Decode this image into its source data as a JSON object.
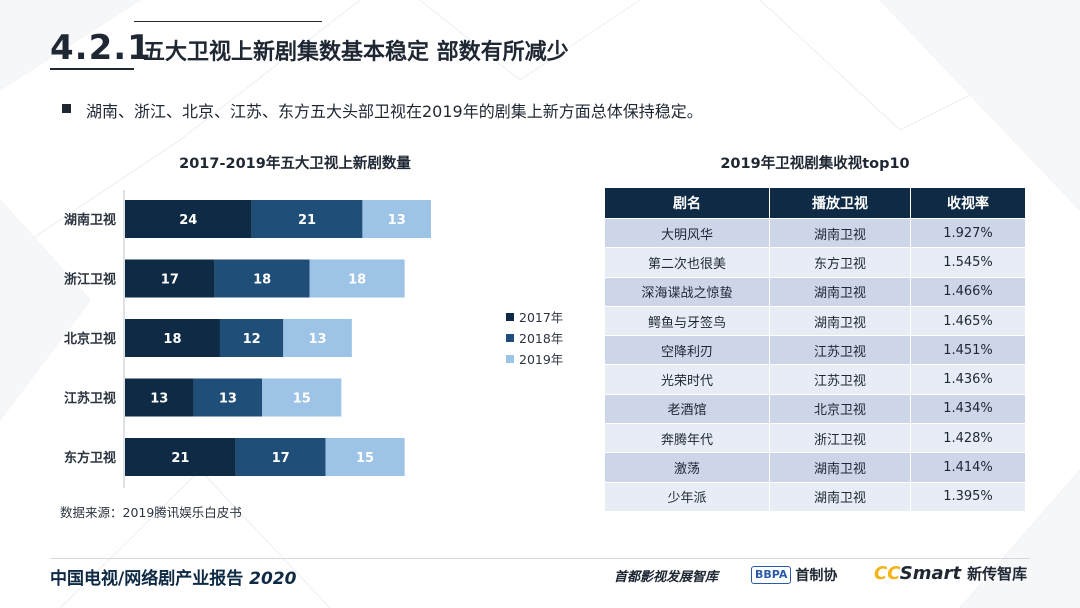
{
  "header": {
    "section_number": "4.2.1",
    "section_title": "五大卫视上新剧集数基本稳定  部数有所减少"
  },
  "bullet": "湖南、浙江、北京、江苏、东方五大头部卫视在2019年的剧集上新方面总体保持稳定。",
  "chart_data": {
    "type": "bar",
    "orientation": "horizontal",
    "stacked": true,
    "title": "2017-2019年五大卫视上新剧数量",
    "categories": [
      "湖南卫视",
      "浙江卫视",
      "北京卫视",
      "江苏卫视",
      "东方卫视"
    ],
    "series": [
      {
        "name": "2017年",
        "values": [
          24,
          17,
          18,
          13,
          21
        ],
        "color": "#0e2a44"
      },
      {
        "name": "2018年",
        "values": [
          21,
          18,
          12,
          13,
          17
        ],
        "color": "#1f4e79"
      },
      {
        "name": "2019年",
        "values": [
          13,
          18,
          13,
          15,
          15
        ],
        "color": "#9dc3e6"
      }
    ],
    "xlim": [
      0,
      70
    ],
    "grid": false,
    "legend_position": "right"
  },
  "source": "数据来源：2019腾讯娱乐白皮书",
  "table": {
    "title": "2019年卫视剧集收视top10",
    "headers": [
      "剧名",
      "播放卫视",
      "收视率"
    ],
    "rows": [
      [
        "大明风华",
        "湖南卫视",
        "1.927%"
      ],
      [
        "第二次也很美",
        "东方卫视",
        "1.545%"
      ],
      [
        "深海谍战之惊蛰",
        "湖南卫视",
        "1.466%"
      ],
      [
        "鳄鱼与牙签鸟",
        "湖南卫视",
        "1.465%"
      ],
      [
        "空降利刃",
        "江苏卫视",
        "1.451%"
      ],
      [
        "光荣时代",
        "江苏卫视",
        "1.436%"
      ],
      [
        "老酒馆",
        "北京卫视",
        "1.434%"
      ],
      [
        "奔腾年代",
        "浙江卫视",
        "1.428%"
      ],
      [
        "激荡",
        "湖南卫视",
        "1.414%"
      ],
      [
        "少年派",
        "湖南卫视",
        "1.395%"
      ]
    ]
  },
  "footer": {
    "report_title": "中国电视/网络剧产业报告",
    "report_year": "2020",
    "brand1": "首都影视发展智库",
    "brand2_box": "BBPA",
    "brand2_name": "首制协",
    "brand3_cc": "CC",
    "brand3_smart": "Smart",
    "brand3_think": "新传智库"
  }
}
